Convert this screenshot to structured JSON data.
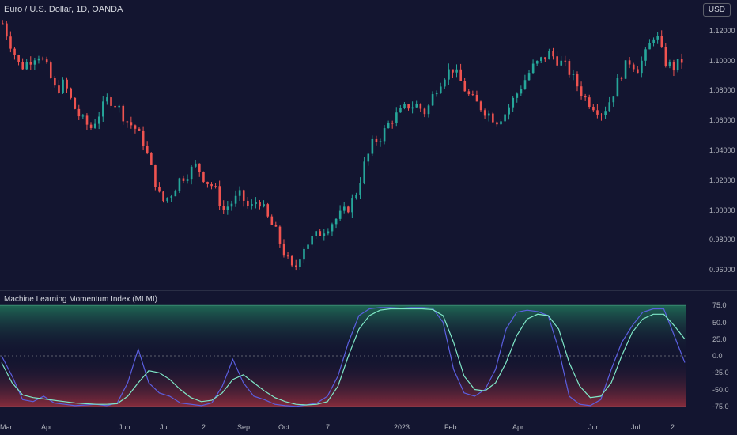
{
  "header": {
    "symbol_title": "Euro / U.S. Dollar, 1D, OANDA",
    "currency_label": "USD"
  },
  "price_axis": {
    "labels": [
      "1.12000",
      "1.10000",
      "1.08000",
      "1.06000",
      "1.04000",
      "1.02000",
      "1.00000",
      "0.98000",
      "0.96000"
    ],
    "values": [
      1.12,
      1.1,
      1.08,
      1.06,
      1.04,
      1.02,
      1.0,
      0.98,
      0.96
    ]
  },
  "indicator": {
    "title": "Machine Learning Momentum Index (MLMI)",
    "axis_labels": [
      "75.0",
      "50.0",
      "25.0",
      "0.0",
      "-25.0",
      "-50.0",
      "-75.0"
    ],
    "axis_values": [
      75,
      50,
      25,
      0,
      -25,
      -50,
      -75
    ]
  },
  "time_axis": {
    "labels": [
      "Mar",
      "Apr",
      "Jun",
      "Jul",
      "2",
      "Sep",
      "Oct",
      "7",
      "2023",
      "Feb",
      "Apr",
      "Jun",
      "Jul",
      "2"
    ]
  },
  "colors": {
    "background": "#131530",
    "candle_up": "#26a69a",
    "candle_down": "#ef5350",
    "mlmi_line": "#5b5fe0",
    "mlmi_signal": "#7fe8c8",
    "zone_upper": "#1c5a4a",
    "zone_lower": "#7a2a3a"
  },
  "chart_data": [
    {
      "type": "candlestick",
      "title": "Euro / U.S. Dollar, 1D, OANDA",
      "ylim": [
        0.95,
        1.13
      ],
      "x_labels": [
        "Mar",
        "Apr",
        "Jun",
        "Jul",
        "2",
        "Sep",
        "Oct",
        "7",
        "2023",
        "Feb",
        "Apr",
        "Jun",
        "Jul",
        "2"
      ],
      "close_trend": [
        1.125,
        1.11,
        1.095,
        1.1,
        1.105,
        1.095,
        1.08,
        1.085,
        1.07,
        1.06,
        1.055,
        1.065,
        1.075,
        1.07,
        1.06,
        1.055,
        1.045,
        1.025,
        1.005,
        1.01,
        1.02,
        1.025,
        1.03,
        1.02,
        1.015,
        1.0,
        1.005,
        1.01,
        1.0,
        1.008,
        0.995,
        0.985,
        0.97,
        0.958,
        0.975,
        0.98,
        0.985,
        0.99,
        0.995,
        1.0,
        1.01,
        1.03,
        1.045,
        1.05,
        1.06,
        1.065,
        1.07,
        1.07,
        1.065,
        1.08,
        1.09,
        1.095,
        1.085,
        1.075,
        1.07,
        1.065,
        1.06,
        1.065,
        1.075,
        1.085,
        1.095,
        1.1,
        1.105,
        1.1,
        1.095,
        1.085,
        1.075,
        1.07,
        1.065,
        1.075,
        1.09,
        1.1,
        1.095,
        1.105,
        1.12,
        1.1,
        1.095,
        1.1
      ]
    },
    {
      "type": "line",
      "title": "Machine Learning Momentum Index (MLMI)",
      "ylim": [
        -80,
        80
      ],
      "series": [
        {
          "values": [
            0,
            -30,
            -65,
            -68,
            -60,
            -70,
            -72,
            -74,
            -73,
            -72,
            -74,
            -70,
            -40,
            10,
            -40,
            -55,
            -60,
            -70,
            -72,
            -74,
            -70,
            -45,
            -5,
            -40,
            -60,
            -65,
            -72,
            -74,
            -75,
            -73,
            -70,
            -60,
            -30,
            20,
            60,
            70,
            72,
            72,
            71,
            72,
            72,
            71,
            50,
            -20,
            -55,
            -60,
            -50,
            -20,
            40,
            65,
            68,
            66,
            60,
            10,
            -60,
            -72,
            -74,
            -65,
            -20,
            20,
            45,
            65,
            70,
            70,
            30,
            -10
          ]
        },
        {
          "values": [
            -10,
            -40,
            -58,
            -62,
            -64,
            -66,
            -68,
            -70,
            -71,
            -72,
            -72,
            -71,
            -60,
            -40,
            -22,
            -25,
            -35,
            -50,
            -62,
            -68,
            -66,
            -55,
            -35,
            -28,
            -40,
            -52,
            -62,
            -68,
            -72,
            -73,
            -72,
            -68,
            -45,
            0,
            40,
            60,
            68,
            70,
            70,
            70,
            70,
            69,
            60,
            20,
            -30,
            -50,
            -52,
            -40,
            -10,
            30,
            55,
            62,
            60,
            40,
            -10,
            -45,
            -62,
            -60,
            -40,
            0,
            35,
            55,
            62,
            62,
            45,
            25
          ]
        }
      ]
    }
  ]
}
